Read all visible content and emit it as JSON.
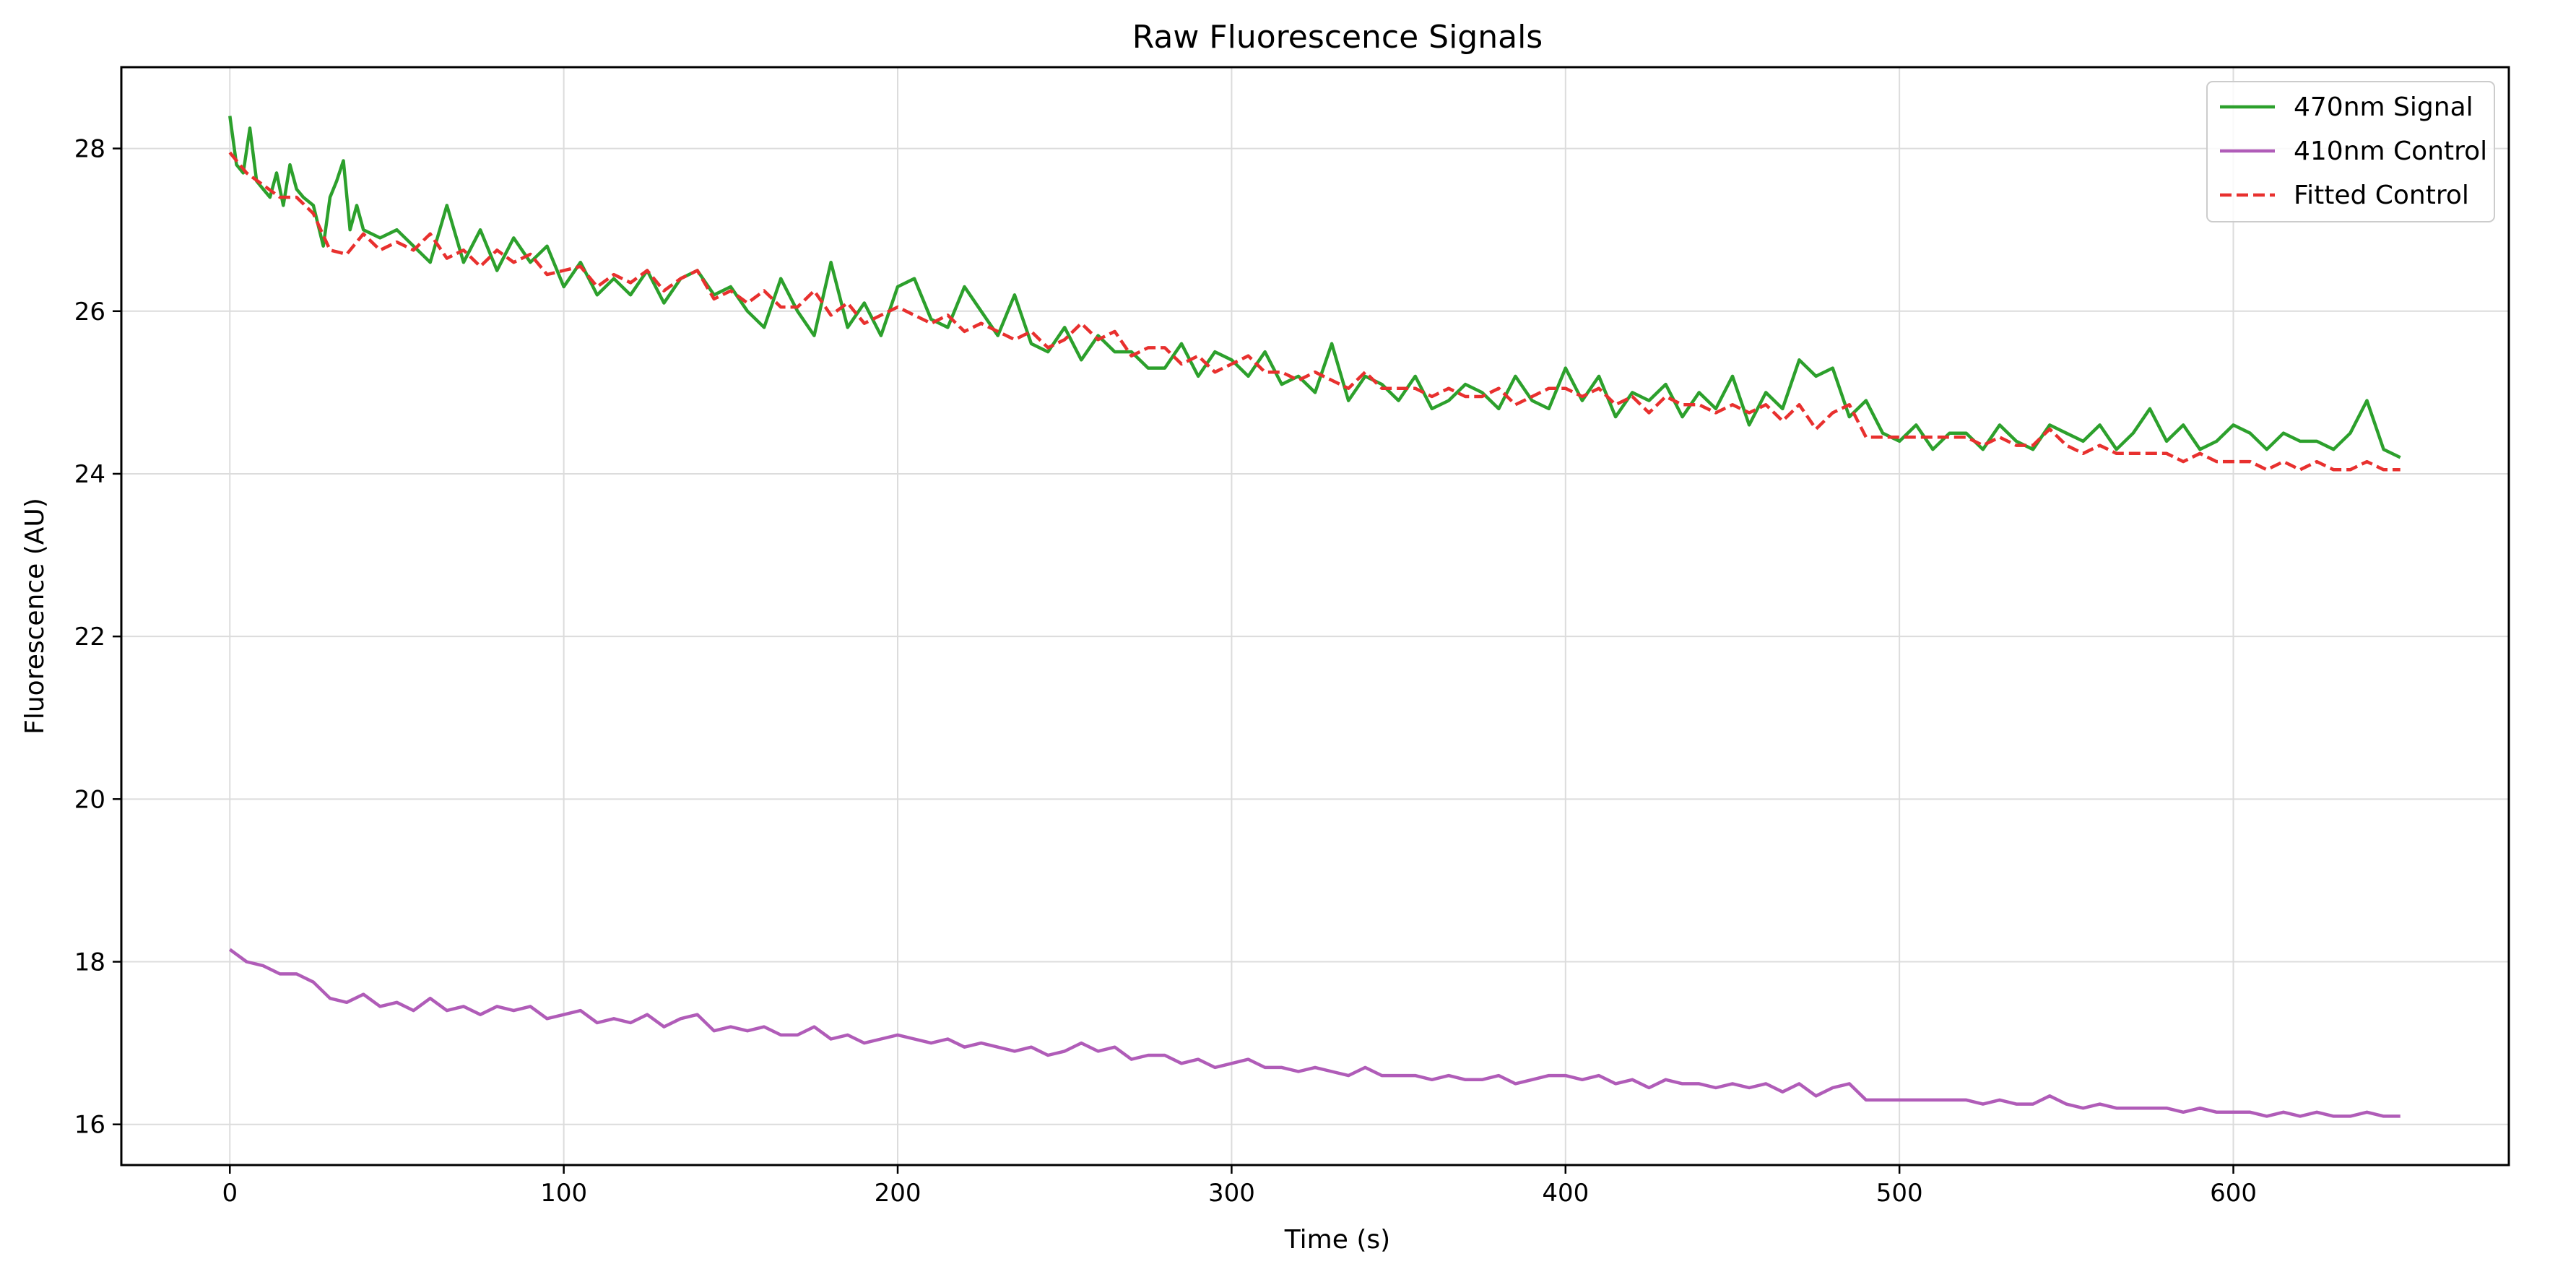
{
  "chart_data": {
    "type": "line",
    "title": "Raw Fluorescence Signals",
    "xlabel": "Time (s)",
    "ylabel": "Fluorescence (AU)",
    "xlim": [
      -32.5,
      682.5
    ],
    "ylim": [
      15.5,
      29.0
    ],
    "xticks": [
      0,
      100,
      200,
      300,
      400,
      500,
      600
    ],
    "yticks": [
      16,
      18,
      20,
      22,
      24,
      26,
      28
    ],
    "grid": true,
    "legend_position": "top-right",
    "series": [
      {
        "name": "470nm Signal",
        "color": "#2ca02c",
        "dash": "solid",
        "x": [
          0,
          2,
          4,
          6,
          8,
          10,
          12,
          14,
          16,
          18,
          20,
          22,
          25,
          28,
          30,
          32,
          34,
          36,
          38,
          40,
          45,
          50,
          55,
          60,
          65,
          70,
          75,
          80,
          85,
          90,
          95,
          100,
          105,
          110,
          115,
          120,
          125,
          130,
          135,
          140,
          145,
          150,
          155,
          160,
          165,
          170,
          175,
          180,
          185,
          190,
          195,
          200,
          205,
          210,
          215,
          220,
          225,
          230,
          235,
          240,
          245,
          250,
          255,
          260,
          265,
          270,
          275,
          280,
          285,
          290,
          295,
          300,
          305,
          310,
          315,
          320,
          325,
          330,
          335,
          340,
          345,
          350,
          355,
          360,
          365,
          370,
          375,
          380,
          385,
          390,
          395,
          400,
          405,
          410,
          415,
          420,
          425,
          430,
          435,
          440,
          445,
          450,
          455,
          460,
          465,
          470,
          475,
          480,
          485,
          490,
          495,
          500,
          505,
          510,
          515,
          520,
          525,
          530,
          535,
          540,
          545,
          550,
          555,
          560,
          565,
          570,
          575,
          580,
          585,
          590,
          595,
          600,
          605,
          610,
          615,
          620,
          625,
          630,
          635,
          640,
          645,
          650
        ],
        "y": [
          28.4,
          27.8,
          27.7,
          28.25,
          27.6,
          27.5,
          27.4,
          27.7,
          27.3,
          27.8,
          27.5,
          27.4,
          27.3,
          26.8,
          27.4,
          27.6,
          27.85,
          27.0,
          27.3,
          27.0,
          26.9,
          27.0,
          26.8,
          26.6,
          27.3,
          26.6,
          27.0,
          26.5,
          26.9,
          26.6,
          26.8,
          26.3,
          26.6,
          26.2,
          26.4,
          26.2,
          26.5,
          26.1,
          26.4,
          26.5,
          26.2,
          26.3,
          26.0,
          25.8,
          26.4,
          26.0,
          25.7,
          26.6,
          25.8,
          26.1,
          25.7,
          26.3,
          26.4,
          25.9,
          25.8,
          26.3,
          26.0,
          25.7,
          26.2,
          25.6,
          25.5,
          25.8,
          25.4,
          25.7,
          25.5,
          25.5,
          25.3,
          25.3,
          25.6,
          25.2,
          25.5,
          25.4,
          25.2,
          25.5,
          25.1,
          25.2,
          25.0,
          25.6,
          24.9,
          25.2,
          25.1,
          24.9,
          25.2,
          24.8,
          24.9,
          25.1,
          25.0,
          24.8,
          25.2,
          24.9,
          24.8,
          25.3,
          24.9,
          25.2,
          24.7,
          25.0,
          24.9,
          25.1,
          24.7,
          25.0,
          24.8,
          25.2,
          24.6,
          25.0,
          24.8,
          25.4,
          25.2,
          25.3,
          24.7,
          24.9,
          24.5,
          24.4,
          24.6,
          24.3,
          24.5,
          24.5,
          24.3,
          24.6,
          24.4,
          24.3,
          24.6,
          24.5,
          24.4,
          24.6,
          24.3,
          24.5,
          24.8,
          24.4,
          24.6,
          24.3,
          24.4,
          24.6,
          24.5,
          24.3,
          24.5,
          24.4,
          24.4,
          24.3,
          24.5,
          24.9,
          24.3,
          24.2
        ]
      },
      {
        "name": "410nm Control",
        "color": "#b05cb8",
        "dash": "solid",
        "x": [
          0,
          5,
          10,
          15,
          20,
          25,
          30,
          35,
          40,
          45,
          50,
          55,
          60,
          65,
          70,
          75,
          80,
          85,
          90,
          95,
          100,
          105,
          110,
          115,
          120,
          125,
          130,
          135,
          140,
          145,
          150,
          155,
          160,
          165,
          170,
          175,
          180,
          185,
          190,
          195,
          200,
          205,
          210,
          215,
          220,
          225,
          230,
          235,
          240,
          245,
          250,
          255,
          260,
          265,
          270,
          275,
          280,
          285,
          290,
          295,
          300,
          305,
          310,
          315,
          320,
          325,
          330,
          335,
          340,
          345,
          350,
          355,
          360,
          365,
          370,
          375,
          380,
          385,
          390,
          395,
          400,
          405,
          410,
          415,
          420,
          425,
          430,
          435,
          440,
          445,
          450,
          455,
          460,
          465,
          470,
          475,
          480,
          485,
          490,
          495,
          500,
          505,
          510,
          515,
          520,
          525,
          530,
          535,
          540,
          545,
          550,
          555,
          560,
          565,
          570,
          575,
          580,
          585,
          590,
          595,
          600,
          605,
          610,
          615,
          620,
          625,
          630,
          635,
          640,
          645,
          650
        ],
        "y": [
          18.15,
          18.0,
          17.95,
          17.85,
          17.85,
          17.75,
          17.55,
          17.5,
          17.6,
          17.45,
          17.5,
          17.4,
          17.55,
          17.4,
          17.45,
          17.35,
          17.45,
          17.4,
          17.45,
          17.3,
          17.35,
          17.4,
          17.25,
          17.3,
          17.25,
          17.35,
          17.2,
          17.3,
          17.35,
          17.15,
          17.2,
          17.15,
          17.2,
          17.1,
          17.1,
          17.2,
          17.05,
          17.1,
          17.0,
          17.05,
          17.1,
          17.05,
          17.0,
          17.05,
          16.95,
          17.0,
          16.95,
          16.9,
          16.95,
          16.85,
          16.9,
          17.0,
          16.9,
          16.95,
          16.8,
          16.85,
          16.85,
          16.75,
          16.8,
          16.7,
          16.75,
          16.8,
          16.7,
          16.7,
          16.65,
          16.7,
          16.65,
          16.6,
          16.7,
          16.6,
          16.6,
          16.6,
          16.55,
          16.6,
          16.55,
          16.55,
          16.6,
          16.5,
          16.55,
          16.6,
          16.6,
          16.55,
          16.6,
          16.5,
          16.55,
          16.45,
          16.55,
          16.5,
          16.5,
          16.45,
          16.5,
          16.45,
          16.5,
          16.4,
          16.5,
          16.35,
          16.45,
          16.5,
          16.3,
          16.3,
          16.3,
          16.3,
          16.3,
          16.3,
          16.3,
          16.25,
          16.3,
          16.25,
          16.25,
          16.35,
          16.25,
          16.2,
          16.25,
          16.2,
          16.2,
          16.2,
          16.2,
          16.15,
          16.2,
          16.15,
          16.15,
          16.15,
          16.1,
          16.15,
          16.1,
          16.15,
          16.1,
          16.1,
          16.15,
          16.1,
          16.1
        ]
      },
      {
        "name": "Fitted Control",
        "color": "#e8302e",
        "dash": "dashed",
        "x": [
          0,
          5,
          10,
          15,
          20,
          25,
          30,
          35,
          40,
          45,
          50,
          55,
          60,
          65,
          70,
          75,
          80,
          85,
          90,
          95,
          100,
          105,
          110,
          115,
          120,
          125,
          130,
          135,
          140,
          145,
          150,
          155,
          160,
          165,
          170,
          175,
          180,
          185,
          190,
          195,
          200,
          205,
          210,
          215,
          220,
          225,
          230,
          235,
          240,
          245,
          250,
          255,
          260,
          265,
          270,
          275,
          280,
          285,
          290,
          295,
          300,
          305,
          310,
          315,
          320,
          325,
          330,
          335,
          340,
          345,
          350,
          355,
          360,
          365,
          370,
          375,
          380,
          385,
          390,
          395,
          400,
          405,
          410,
          415,
          420,
          425,
          430,
          435,
          440,
          445,
          450,
          455,
          460,
          465,
          470,
          475,
          480,
          485,
          490,
          495,
          500,
          505,
          510,
          515,
          520,
          525,
          530,
          535,
          540,
          545,
          550,
          555,
          560,
          565,
          570,
          575,
          580,
          585,
          590,
          595,
          600,
          605,
          610,
          615,
          620,
          625,
          630,
          635,
          640,
          645,
          650
        ],
        "y": [
          27.95,
          27.7,
          27.55,
          27.4,
          27.4,
          27.2,
          26.75,
          26.7,
          26.95,
          26.75,
          26.85,
          26.75,
          26.95,
          26.65,
          26.75,
          26.55,
          26.75,
          26.6,
          26.7,
          26.45,
          26.5,
          26.55,
          26.3,
          26.45,
          26.35,
          26.5,
          26.25,
          26.4,
          26.5,
          26.15,
          26.25,
          26.1,
          26.25,
          26.05,
          26.05,
          26.25,
          25.95,
          26.1,
          25.85,
          25.95,
          26.05,
          25.95,
          25.85,
          25.95,
          25.75,
          25.85,
          25.75,
          25.65,
          25.75,
          25.55,
          25.65,
          25.85,
          25.65,
          25.75,
          25.45,
          25.55,
          25.55,
          25.35,
          25.45,
          25.25,
          25.35,
          25.45,
          25.25,
          25.25,
          25.15,
          25.25,
          25.15,
          25.05,
          25.25,
          25.05,
          25.05,
          25.05,
          24.95,
          25.05,
          24.95,
          24.95,
          25.05,
          24.85,
          24.95,
          25.05,
          25.05,
          24.95,
          25.05,
          24.85,
          24.95,
          24.75,
          24.95,
          24.85,
          24.85,
          24.75,
          24.85,
          24.75,
          24.85,
          24.65,
          24.85,
          24.55,
          24.75,
          24.85,
          24.45,
          24.45,
          24.45,
          24.45,
          24.45,
          24.45,
          24.45,
          24.35,
          24.45,
          24.35,
          24.35,
          24.55,
          24.35,
          24.25,
          24.35,
          24.25,
          24.25,
          24.25,
          24.25,
          24.15,
          24.25,
          24.15,
          24.15,
          24.15,
          24.05,
          24.15,
          24.05,
          24.15,
          24.05,
          24.05,
          24.15,
          24.05,
          24.05
        ]
      }
    ]
  }
}
